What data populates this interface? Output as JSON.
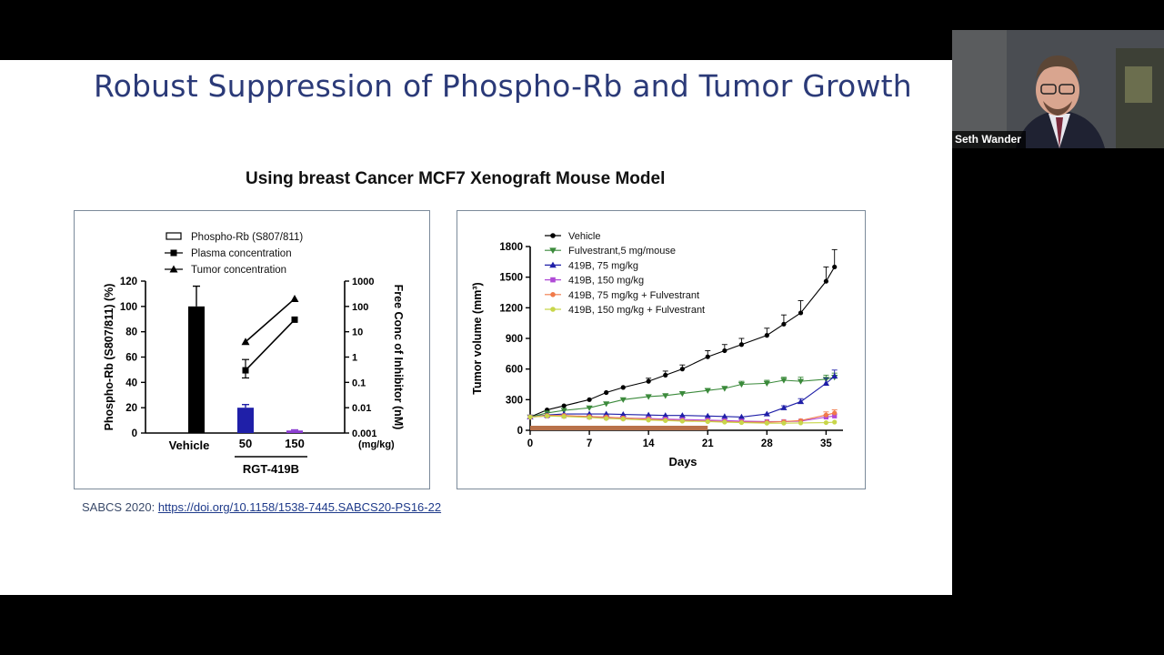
{
  "slide": {
    "title": "Robust Suppression of Phospho-Rb and Tumor Growth",
    "subtitle": "Using breast Cancer MCF7 Xenograft Mouse Model",
    "citation_prefix": "SABCS 2020: ",
    "citation_link": "https://doi.org/10.1158/1538-7445.SABCS20-PS16-22"
  },
  "video": {
    "speaker_name": "Seth Wander"
  },
  "chart_data": [
    {
      "type": "bar",
      "legend": [
        {
          "label": "Phospho-Rb (S807/811)",
          "marker": "open-bar"
        },
        {
          "label": "Plasma concentration",
          "marker": "square"
        },
        {
          "label": "Tumor concentration",
          "marker": "triangle"
        }
      ],
      "ylabel": "Phospho-Rb (S807/811) (%)",
      "y2label": "Free Conc of Inhibitor (nM)",
      "yticks": [
        "0",
        "20",
        "40",
        "60",
        "80",
        "100",
        "120"
      ],
      "y2ticks": [
        "0.001",
        "0.01",
        "0.1",
        "1",
        "10",
        "100",
        "1000"
      ],
      "ylim": [
        0,
        120
      ],
      "y2lim_log": [
        0.001,
        1000
      ],
      "categories": [
        "Vehicle",
        "50",
        "150"
      ],
      "dose_unit": "(mg/kg)",
      "group_label": "RGT-419B",
      "values": [
        100,
        20,
        2
      ],
      "errors": [
        16,
        2.5,
        0.5
      ],
      "bar_colors": [
        "#000000",
        "#1f1fa8",
        "#8a3bd1"
      ],
      "plasma_concentration": {
        "dose": [
          "50",
          "150"
        ],
        "values": [
          0.3,
          30
        ],
        "err_lo": [
          0.15,
          0
        ],
        "err_hi": [
          0.5,
          0
        ]
      },
      "tumor_concentration": {
        "dose": [
          "50",
          "150"
        ],
        "values": [
          4,
          200
        ]
      }
    },
    {
      "type": "line",
      "xlabel": "Days",
      "ylabel": "Tumor volume (mm³)",
      "xticks": [
        "0",
        "7",
        "14",
        "21",
        "28",
        "35"
      ],
      "yticks": [
        "0",
        "300",
        "600",
        "900",
        "1200",
        "1500",
        "1800"
      ],
      "xlim": [
        0,
        37
      ],
      "ylim": [
        0,
        1800
      ],
      "treatment_period_days": [
        0,
        21
      ],
      "treatment_bar_color": "#b8714a",
      "series": [
        {
          "name": "Vehicle",
          "color": "#000000",
          "marker": "circle",
          "x": [
            0,
            2,
            4,
            7,
            9,
            11,
            14,
            16,
            18,
            21,
            23,
            25,
            28,
            30,
            32,
            35,
            36
          ],
          "y": [
            130,
            200,
            240,
            300,
            370,
            420,
            480,
            540,
            600,
            720,
            780,
            840,
            930,
            1040,
            1150,
            1460,
            1600
          ],
          "err": [
            0,
            0,
            0,
            0,
            0,
            0,
            30,
            40,
            40,
            60,
            60,
            60,
            70,
            90,
            120,
            140,
            170
          ]
        },
        {
          "name": "Fulvestrant,5 mg/mouse",
          "color": "#3b8a3b",
          "marker": "triangle-down",
          "x": [
            0,
            2,
            4,
            7,
            9,
            11,
            14,
            16,
            18,
            21,
            23,
            25,
            28,
            30,
            32,
            35,
            36
          ],
          "y": [
            130,
            170,
            195,
            220,
            260,
            300,
            330,
            340,
            360,
            390,
            410,
            450,
            460,
            490,
            480,
            500,
            520
          ],
          "err": [
            0,
            0,
            0,
            0,
            0,
            0,
            0,
            0,
            0,
            20,
            20,
            30,
            30,
            30,
            40,
            40,
            40
          ]
        },
        {
          "name": "419B, 75 mg/kg",
          "color": "#1f1fa8",
          "marker": "triangle",
          "x": [
            0,
            2,
            4,
            7,
            9,
            11,
            14,
            16,
            18,
            21,
            23,
            25,
            28,
            30,
            32,
            35,
            36
          ],
          "y": [
            130,
            150,
            160,
            160,
            160,
            155,
            150,
            145,
            145,
            140,
            135,
            130,
            160,
            220,
            280,
            460,
            530
          ],
          "err": [
            0,
            0,
            0,
            0,
            0,
            0,
            0,
            0,
            0,
            0,
            0,
            0,
            0,
            20,
            30,
            50,
            60
          ]
        },
        {
          "name": "419B, 150 mg/kg",
          "color": "#b04ad6",
          "marker": "square",
          "x": [
            0,
            2,
            4,
            7,
            9,
            11,
            14,
            16,
            18,
            21,
            23,
            25,
            28,
            30,
            32,
            35,
            36
          ],
          "y": [
            130,
            140,
            140,
            130,
            125,
            120,
            115,
            110,
            105,
            100,
            95,
            90,
            85,
            85,
            90,
            130,
            140
          ],
          "err": [
            0,
            0,
            0,
            0,
            0,
            0,
            0,
            0,
            0,
            0,
            0,
            0,
            0,
            0,
            0,
            20,
            20
          ]
        },
        {
          "name": "419B, 75 mg/kg + Fulvestrant",
          "color": "#f07a4a",
          "marker": "circle",
          "x": [
            0,
            2,
            4,
            7,
            9,
            11,
            14,
            16,
            18,
            21,
            23,
            25,
            28,
            30,
            32,
            35,
            36
          ],
          "y": [
            130,
            145,
            145,
            135,
            130,
            120,
            110,
            100,
            95,
            90,
            85,
            80,
            80,
            85,
            95,
            150,
            170
          ],
          "err": [
            0,
            0,
            0,
            0,
            0,
            0,
            0,
            0,
            0,
            0,
            0,
            0,
            0,
            0,
            0,
            30,
            30
          ]
        },
        {
          "name": "419B, 150 mg/kg + Fulvestrant",
          "color": "#c8d64a",
          "marker": "circle",
          "x": [
            0,
            2,
            4,
            7,
            9,
            11,
            14,
            16,
            18,
            21,
            23,
            25,
            28,
            30,
            32,
            35,
            36
          ],
          "y": [
            130,
            140,
            135,
            125,
            115,
            110,
            100,
            95,
            90,
            85,
            80,
            75,
            70,
            70,
            72,
            75,
            80
          ],
          "err": [
            0,
            0,
            0,
            0,
            0,
            0,
            0,
            0,
            0,
            0,
            0,
            0,
            0,
            0,
            0,
            0,
            0
          ]
        }
      ]
    }
  ]
}
